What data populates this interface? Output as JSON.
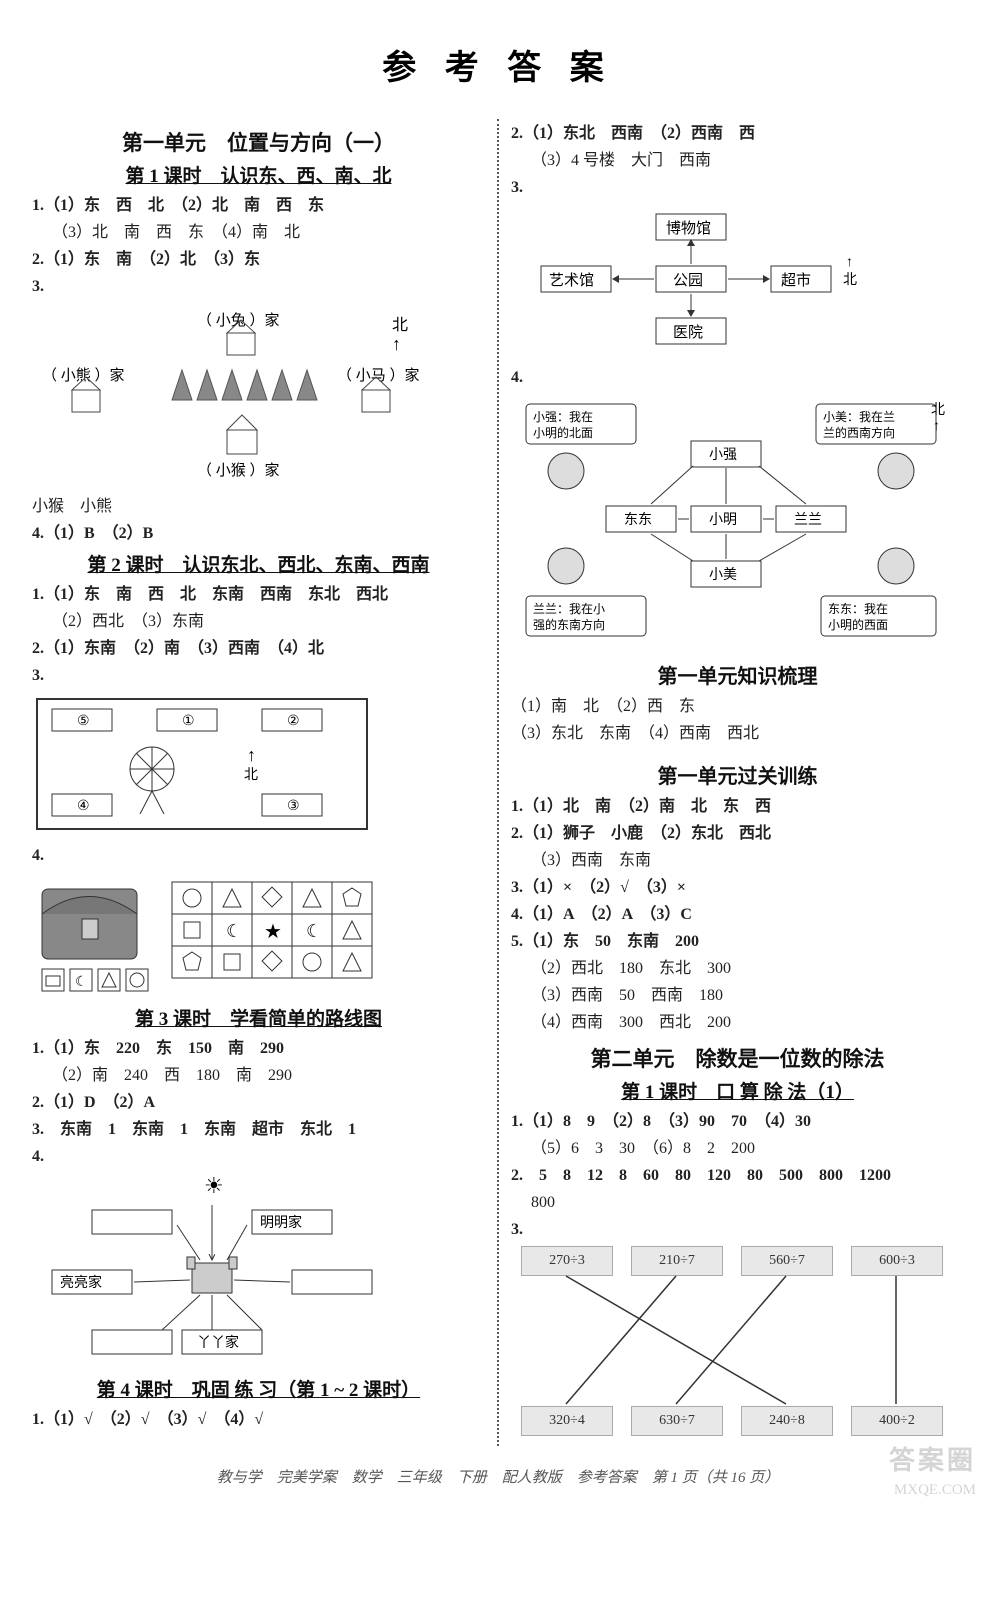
{
  "title": "参 考 答 案",
  "left": {
    "unit1_title": "第一单元　位置与方向（一）",
    "l1_title": "第 1 课时　认识东、西、南、北",
    "l1_q1": "1.（1）东　西　北　（2）北　南　西　东",
    "l1_q1b": "　 （3）北　南　西　东　（4）南　北",
    "l1_q2": "2.（1）东　南　（2）北　（3）东",
    "l1_q3_num": "3.",
    "l1_fig": {
      "north": "北",
      "arrow": "↑",
      "top_label": "（ 小兔 ）家",
      "left_label": "（ 小熊 ）家",
      "right_label": "（ 小马 ）家",
      "bottom_label": "（ 小猴 ）家"
    },
    "l1_below": "小猴　小熊",
    "l1_q4": "4.（1）B　（2）B",
    "l2_title": "第 2 课时　认识东北、西北、东南、西南",
    "l2_q1": "1.（1）东　南　西　北　东南　西南　东北　西北",
    "l2_q1b": "　 （2）西北　（3）东南",
    "l2_q2": "2.（1）东南　（2）南　（3）西南　（4）北",
    "l2_q3_num": "3.",
    "l2_fig": {
      "north": "北",
      "boxes": [
        "⑤",
        "①",
        "②",
        "④",
        "③"
      ]
    },
    "l2_q4_num": "4.",
    "l3_title": "第 3 课时　学看简单的路线图",
    "l3_q1": "1.（1）东　220　东　150　南　290",
    "l3_q1b": "　 （2）南　240　西　180　南　290",
    "l3_q2": "2.（1）D　（2）A",
    "l3_q3": "3.　东南　1　东南　1　东南　超市　东北　1",
    "l3_q4_num": "4.",
    "l3_fig": {
      "top_right": "明明家",
      "left": "亮亮家",
      "bottom": "丫丫家"
    },
    "l4_title": "第 4 课时　巩固 练 习（第 1 ~ 2 课时）",
    "l4_q1": "1.（1）√　（2）√　（3）√　（4）√"
  },
  "right": {
    "r_q2": "2.（1）东北　西南　（2）西南　西",
    "r_q2b": "　 （3）4 号楼　大门　西南",
    "r_q3_num": "3.",
    "r_fig3": {
      "top": "博物馆",
      "left": "艺术馆",
      "center": "公园",
      "right": "超市",
      "bottom": "医院",
      "north": "北"
    },
    "r_q4_num": "4.",
    "r_fig4": {
      "tl": "小强：我在小明的北面",
      "tr": "小美：我在兰兰的西南方向",
      "bl": "兰兰：我在小强的东南方向",
      "br": "东东：我在小明的西面",
      "n_top": "小强",
      "n_left": "东东",
      "n_center": "小明",
      "n_right": "兰兰",
      "n_bottom": "小美",
      "north": "北"
    },
    "sum_title": "第一单元知识梳理",
    "sum_1": "（1）南　北　（2）西　东",
    "sum_2": "（3）东北　东南　（4）西南　西北",
    "test_title": "第一单元过关训练",
    "t_q1": "1.（1）北　南　（2）南　北　东　西",
    "t_q2": "2.（1）狮子　小鹿　（2）东北　西北",
    "t_q2b": "　 （3）西南　东南",
    "t_q3": "3.（1）×　（2）√　（3）×",
    "t_q4": "4.（1）A　（2）A　（3）C",
    "t_q5": "5.（1）东　50　东南　200",
    "t_q5b": "　 （2）西北　180　东北　300",
    "t_q5c": "　 （3）西南　50　西南　180",
    "t_q5d": "　 （4）西南　300　西北　200",
    "unit2_title": "第二单元　除数是一位数的除法",
    "u2l1_title": "第 1 课时　口 算 除 法（1）",
    "u2_q1": "1.（1）8　9　（2）8　（3）90　70　（4）30",
    "u2_q1b": "　 （5）6　3　30　（6）8　2　200",
    "u2_q2": "2.　5　8　12　8　60　80　120　80　500　800　1200",
    "u2_q2b": "　 800",
    "u2_q3_num": "3.",
    "matching": {
      "top": [
        "270÷3",
        "210÷7",
        "560÷7",
        "600÷3"
      ],
      "bottom": [
        "320÷4",
        "630÷7",
        "240÷8",
        "400÷2"
      ],
      "edges": [
        [
          0,
          2
        ],
        [
          1,
          0
        ],
        [
          2,
          1
        ],
        [
          3,
          3
        ]
      ],
      "box_bg": "#e8e8e8"
    }
  },
  "footer": "教与学　完美学案　数学　三年级　下册　配人教版　参考答案　第 1 页（共 16 页）",
  "watermark1": "答案圈",
  "watermark2": "MXQE.COM",
  "colors": {
    "text": "#333333",
    "bg": "#ffffff",
    "border": "#555555",
    "box_bg": "#e8e8e8"
  }
}
